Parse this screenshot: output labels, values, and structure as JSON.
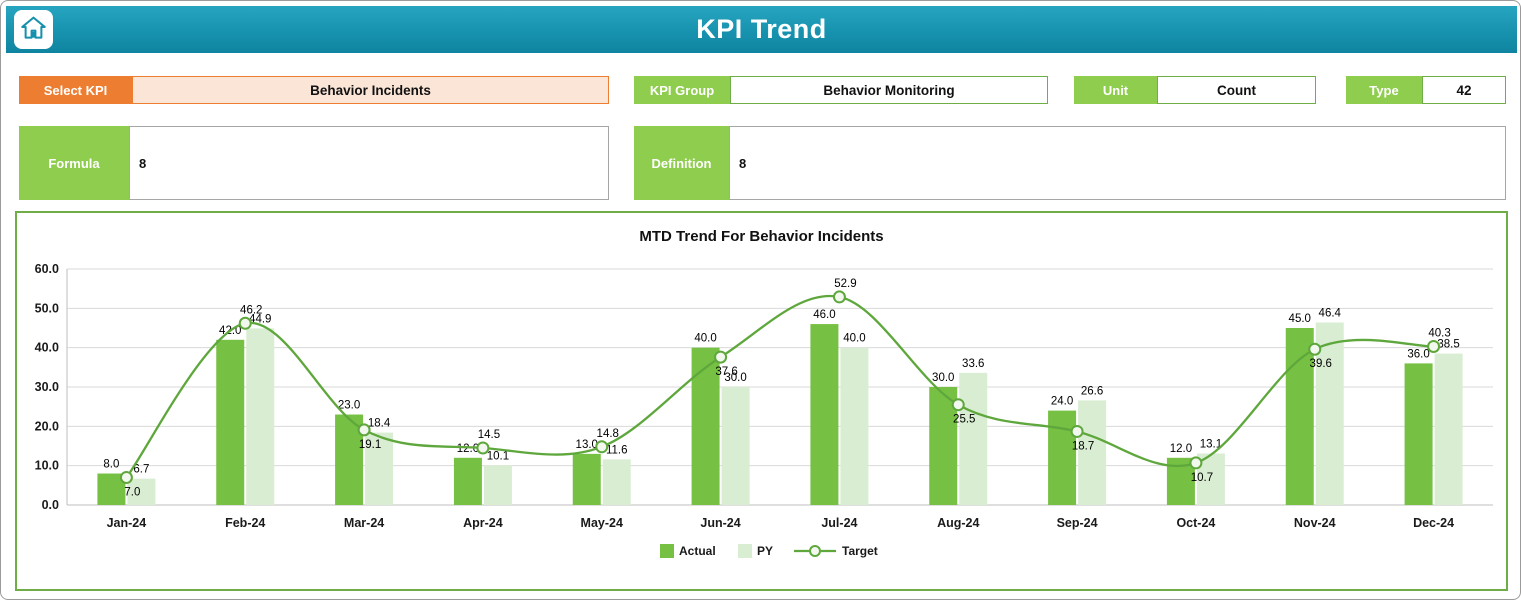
{
  "header": {
    "title": "KPI Trend"
  },
  "icons": {
    "home": "house"
  },
  "controls": {
    "select_kpi": {
      "label": "Select KPI",
      "value": "Behavior Incidents"
    },
    "kpi_group": {
      "label": "KPI Group",
      "value": "Behavior Monitoring"
    },
    "unit": {
      "label": "Unit",
      "value": "Count"
    },
    "type": {
      "label": "Type",
      "value": "42"
    },
    "formula": {
      "label": "Formula",
      "value": "8"
    },
    "definition": {
      "label": "Definition",
      "value": "8"
    }
  },
  "chart_data": {
    "type": "bar",
    "subtype": "grouped-bars-with-smooth-line",
    "title": "MTD Trend For Behavior Incidents",
    "categories": [
      "Jan-24",
      "Feb-24",
      "Mar-24",
      "Apr-24",
      "May-24",
      "Jun-24",
      "Jul-24",
      "Aug-24",
      "Sep-24",
      "Oct-24",
      "Nov-24",
      "Dec-24"
    ],
    "series": [
      {
        "name": "Actual",
        "render": "bar",
        "color": "#76c043",
        "values": [
          8.0,
          42.0,
          23.0,
          12.0,
          13.0,
          40.0,
          46.0,
          30.0,
          24.0,
          12.0,
          45.0,
          36.0
        ]
      },
      {
        "name": "PY",
        "render": "bar",
        "color": "#d9edd2",
        "values": [
          6.7,
          44.9,
          18.4,
          10.1,
          11.6,
          30.0,
          40.0,
          33.6,
          26.6,
          13.1,
          46.4,
          38.5
        ]
      },
      {
        "name": "Target",
        "render": "line",
        "color": "#5ea73c",
        "values": [
          7.0,
          46.2,
          19.1,
          14.5,
          14.8,
          37.6,
          52.9,
          25.5,
          18.7,
          10.7,
          39.6,
          40.3
        ]
      }
    ],
    "xlabel": "",
    "ylabel": "",
    "ylim": [
      0,
      60
    ],
    "ytick_step": 10,
    "ytick_format_decimals": 1,
    "grid": "horizontal",
    "legend_position": "bottom",
    "data_labels": true
  },
  "colors": {
    "header_teal": "#1691ad",
    "accent_orange": "#ed7d31",
    "orange_fill": "#fbe5d6",
    "green_label": "#8fcd4e",
    "green_border": "#6fae46",
    "actual_bar": "#76c043",
    "py_bar": "#d9edd2",
    "target_line": "#5ea73c",
    "gridline": "#d9d9d9"
  }
}
